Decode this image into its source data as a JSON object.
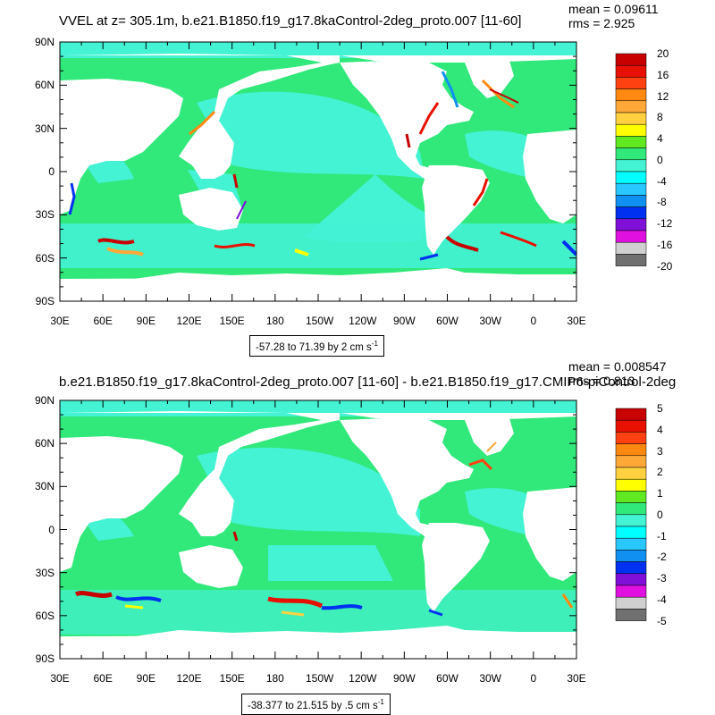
{
  "panels": [
    {
      "title": "VVEL at z= 305.1m, b.e21.B1850.f19_g17.8kaControl-2deg_proto.007 [11-60]",
      "stats": {
        "mean": "mean = 0.09611",
        "rms": "rms = 2.925"
      },
      "range_text": "-57.28 to 71.39 by 2 cm s",
      "range_unit_exp": "-1",
      "colorbar_labels": [
        "20",
        "16",
        "12",
        "8",
        "4",
        "0",
        "-4",
        "-8",
        "-12",
        "-16",
        "-20"
      ]
    },
    {
      "title": "b.e21.B1850.f19_g17.8kaControl-2deg_proto.007 [11-60] - b.e21.B1850.f19_g17.CMIP6-piControl-2deg",
      "stats": {
        "mean": "mean = 0.008547",
        "rms": "rms = 0.813"
      },
      "range_text": "-38.377 to 21.515 by .5 cm s",
      "range_unit_exp": "-1",
      "colorbar_labels": [
        "5",
        "4",
        "3",
        "2",
        "1",
        "0",
        "-1",
        "-2",
        "-3",
        "-4",
        "-5"
      ]
    }
  ],
  "lat_ticks": [
    "90N",
    "60N",
    "30N",
    "0",
    "30S",
    "60S",
    "90S"
  ],
  "lon_ticks": [
    "30E",
    "60E",
    "90E",
    "120E",
    "150E",
    "180",
    "150W",
    "120W",
    "90W",
    "60W",
    "30W",
    "0",
    "30E"
  ],
  "colors": {
    "ocean_base": "#31e87b",
    "ocean_light": "#44f2d4",
    "land": "#ffffff",
    "colorbar": [
      "#c80000",
      "#e81000",
      "#ff4010",
      "#ff8810",
      "#ffa838",
      "#ffd040",
      "#ffff00",
      "#60e820",
      "#31e87b",
      "#44f2d4",
      "#00ffff",
      "#28c8ff",
      "#1090f0",
      "#0030f0",
      "#8010d8",
      "#e010e0",
      "#d0d0d0",
      "#707070"
    ]
  }
}
